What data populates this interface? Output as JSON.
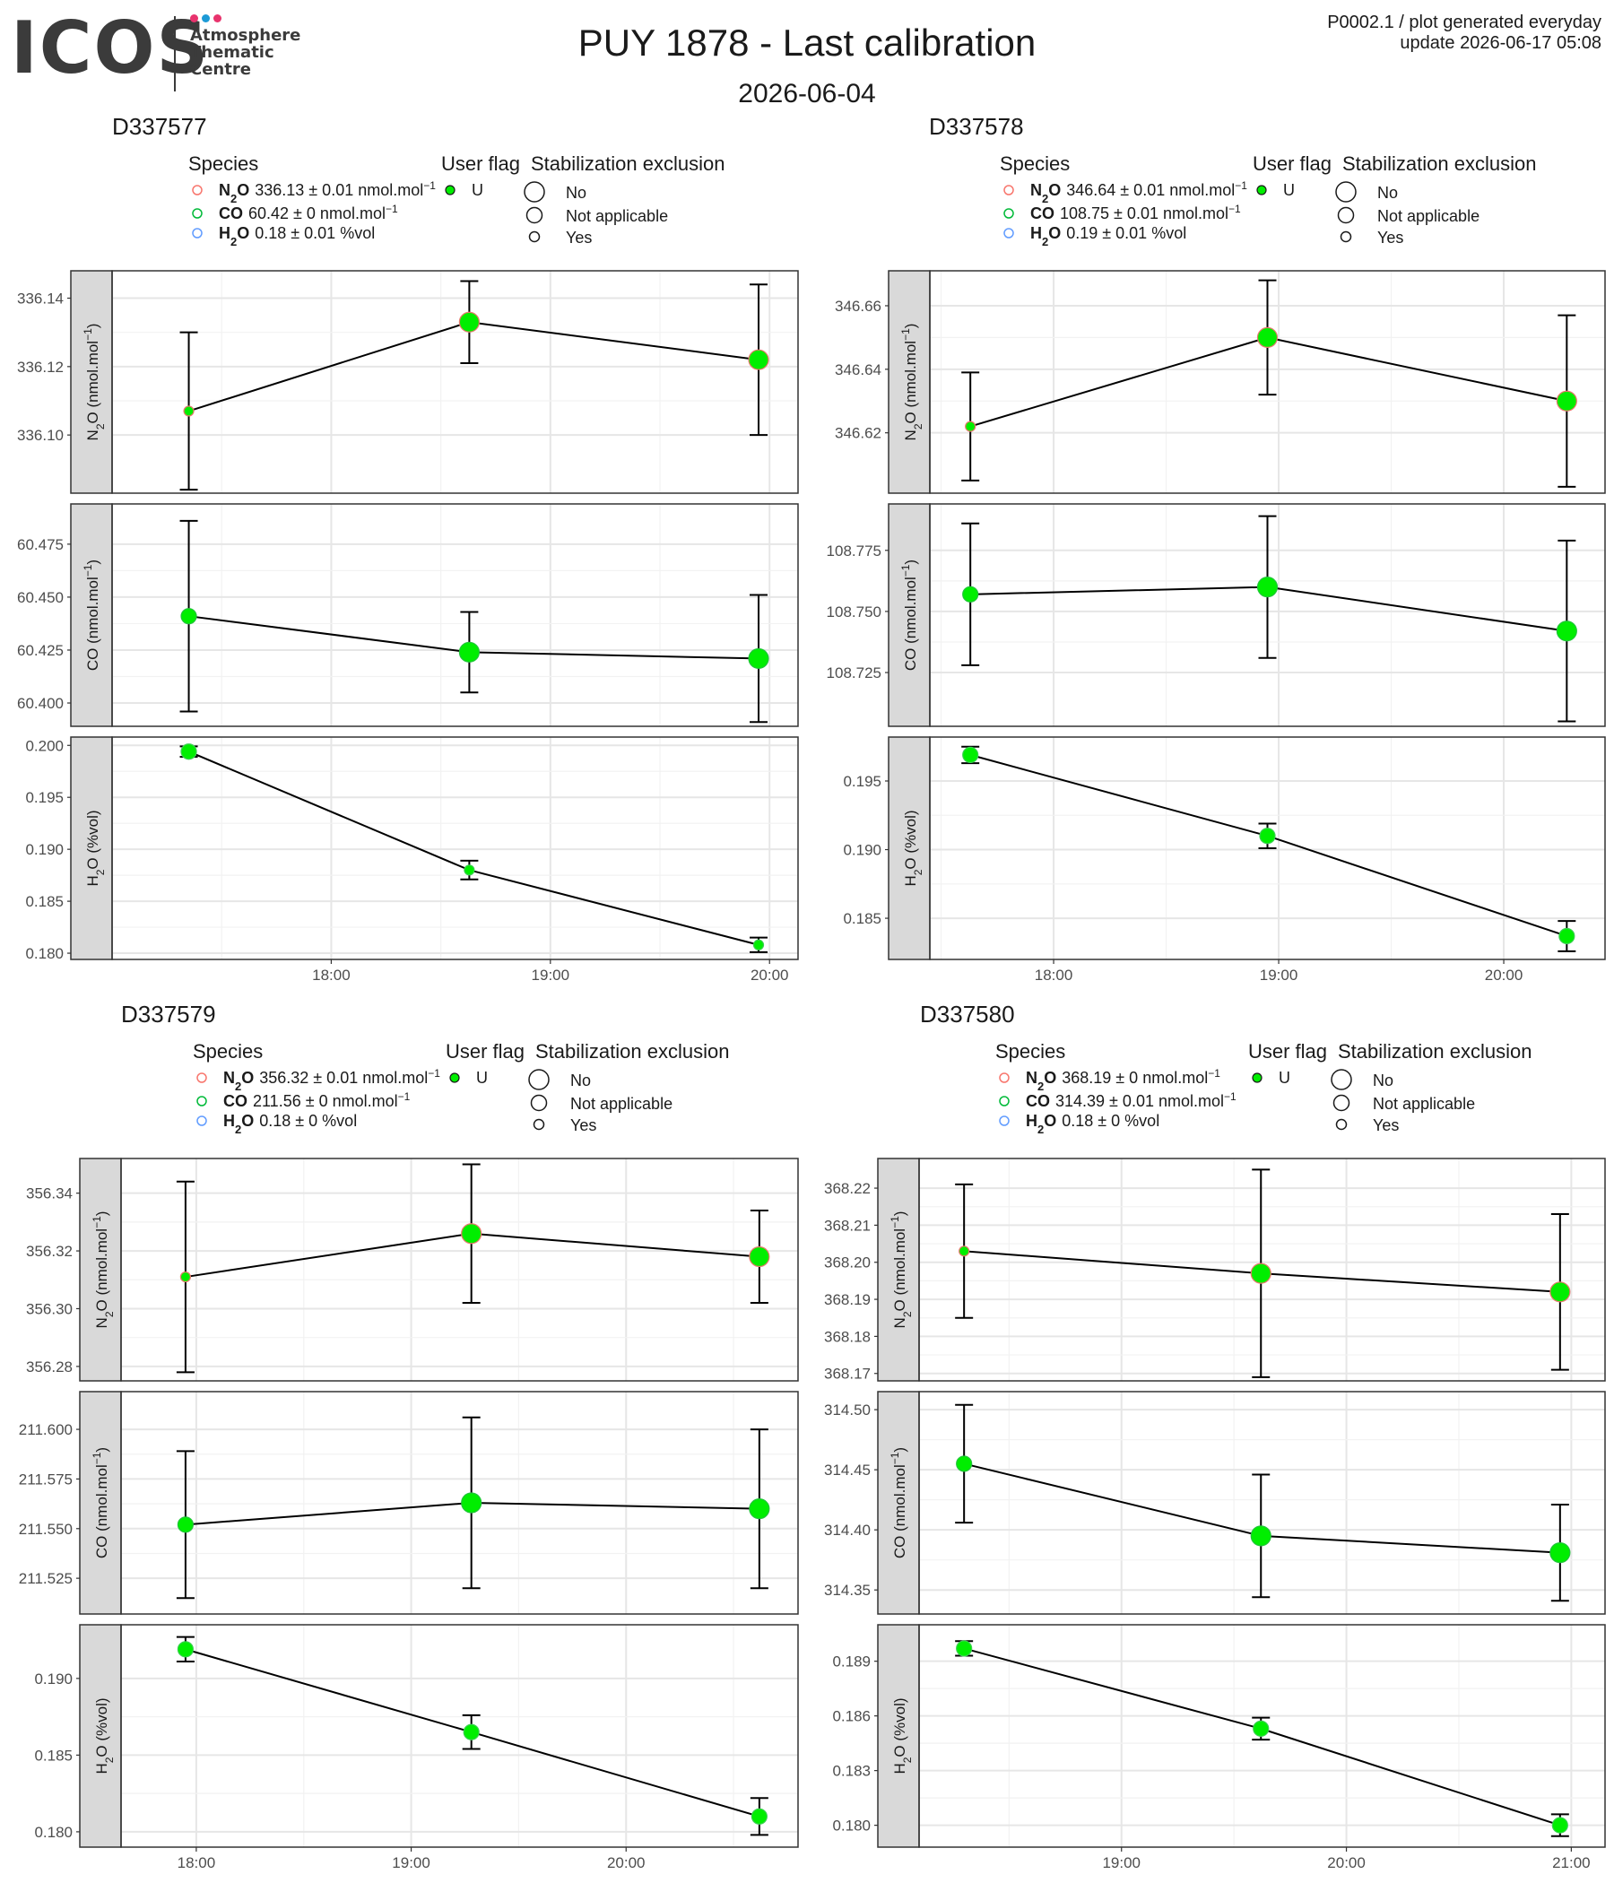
{
  "header": {
    "logo_text": "ICOS",
    "logo_subtitle": [
      "Atmosphere",
      "Thematic",
      "Centre"
    ],
    "logo_dot_colors": [
      "#e8336d",
      "#1c9ad6",
      "#e8336d"
    ],
    "title": "PUY 1878 - Last calibration",
    "subtitle": "2026-06-04",
    "plot_code_line1": "P0002.1 / plot generated everyday",
    "plot_code_line2": "update  2026-06-17 05:08"
  },
  "legend_labels": {
    "species": "Species",
    "user_flag": "User flag",
    "stabilization": "Stabilization exclusion",
    "user_flag_value": "U",
    "stab_values": [
      "No",
      "Not applicable",
      "Yes"
    ]
  },
  "colors": {
    "point_fill": "#00ee00",
    "point_outline_n2o": "#e8796e",
    "n2o_legend": "#f8766d",
    "co_legend": "#00ba38",
    "h2o_legend": "#619cff",
    "strip_bg": "#d9d9d9"
  },
  "chart_data": [
    {
      "type": "line",
      "title": "D337577",
      "legend": {
        "n2o": "336.13 ± 0.01 nmol.mol",
        "co": "60.42 ± 0 nmol.mol",
        "h2o": "0.18 ± 0.01 %vol"
      },
      "x_ticks": [
        "18:00",
        "19:00",
        "20:00"
      ],
      "x_tick_hours": [
        18,
        19,
        20
      ],
      "x_range": [
        17.0,
        20.13
      ],
      "x": [
        17.35,
        18.63,
        19.95
      ],
      "facets": [
        {
          "ylabel": "N2O (nmol.mol-1)",
          "ylim": [
            336.083,
            336.148
          ],
          "ticks": [
            336.1,
            336.12,
            336.14
          ],
          "tick_labels": [
            "336.10",
            "336.12",
            "336.14"
          ],
          "values": [
            336.107,
            336.133,
            336.122
          ],
          "err": [
            0.023,
            0.012,
            0.022
          ],
          "sizes": [
            "Yes",
            "No",
            "No"
          ]
        },
        {
          "ylabel": "CO (nmol.mol-1)",
          "ylim": [
            60.389,
            60.494
          ],
          "ticks": [
            60.4,
            60.425,
            60.45,
            60.475
          ],
          "tick_labels": [
            "60.400",
            "60.425",
            "60.450",
            "60.475"
          ],
          "values": [
            60.441,
            60.424,
            60.421
          ],
          "err": [
            0.045,
            0.019,
            0.03
          ],
          "sizes": [
            "Not applicable",
            "No",
            "No"
          ]
        },
        {
          "ylabel": "H2O (%vol)",
          "ylim": [
            0.1794,
            0.2008
          ],
          "ticks": [
            0.18,
            0.185,
            0.19,
            0.195,
            0.2
          ],
          "tick_labels": [
            "0.180",
            "0.185",
            "0.190",
            "0.195",
            "0.200"
          ],
          "values": [
            0.1994,
            0.188,
            0.1808
          ],
          "err": [
            0.0005,
            0.0009,
            0.0007
          ],
          "sizes": [
            "Not applicable",
            "Yes",
            "Yes"
          ]
        }
      ]
    },
    {
      "type": "line",
      "title": "D337578",
      "legend": {
        "n2o": "346.64 ± 0.01 nmol.mol",
        "co": "108.75 ± 0.01 nmol.mol",
        "h2o": "0.19 ± 0.01 %vol"
      },
      "x_ticks": [
        "18:00",
        "19:00",
        "20:00"
      ],
      "x_tick_hours": [
        18,
        19,
        20
      ],
      "x_range": [
        17.45,
        20.45
      ],
      "x": [
        17.63,
        18.95,
        20.28
      ],
      "facets": [
        {
          "ylabel": "N2O (nmol.mol-1)",
          "ylim": [
            346.601,
            346.671
          ],
          "ticks": [
            346.62,
            346.64,
            346.66
          ],
          "tick_labels": [
            "346.62",
            "346.64",
            "346.66"
          ],
          "values": [
            346.622,
            346.65,
            346.63
          ],
          "err": [
            0.017,
            0.018,
            0.027
          ],
          "sizes": [
            "Yes",
            "No",
            "No"
          ]
        },
        {
          "ylabel": "CO (nmol.mol-1)",
          "ylim": [
            108.703,
            108.794
          ],
          "ticks": [
            108.725,
            108.75,
            108.775
          ],
          "tick_labels": [
            "108.725",
            "108.750",
            "108.775"
          ],
          "values": [
            108.757,
            108.76,
            108.742
          ],
          "err": [
            0.029,
            0.029,
            0.037
          ],
          "sizes": [
            "Not applicable",
            "No",
            "No"
          ]
        },
        {
          "ylabel": "H2O (%vol)",
          "ylim": [
            0.182,
            0.1982
          ],
          "ticks": [
            0.185,
            0.19,
            0.195
          ],
          "tick_labels": [
            "0.185",
            "0.190",
            "0.195"
          ],
          "values": [
            0.1969,
            0.191,
            0.1837
          ],
          "err": [
            0.0006,
            0.0009,
            0.0011
          ],
          "sizes": [
            "Not applicable",
            "Not applicable",
            "Not applicable"
          ]
        }
      ]
    },
    {
      "type": "line",
      "title": "D337579",
      "legend": {
        "n2o": "356.32 ± 0.01 nmol.mol",
        "co": "211.56 ± 0 nmol.mol",
        "h2o": "0.18 ± 0 %vol"
      },
      "x_ticks": [
        "18:00",
        "19:00",
        "20:00"
      ],
      "x_tick_hours": [
        18,
        19,
        20
      ],
      "x_range": [
        17.65,
        20.8
      ],
      "x": [
        17.95,
        19.28,
        20.62
      ],
      "facets": [
        {
          "ylabel": "N2O (nmol.mol-1)",
          "ylim": [
            356.275,
            356.352
          ],
          "ticks": [
            356.28,
            356.3,
            356.32,
            356.34
          ],
          "tick_labels": [
            "356.28",
            "356.30",
            "356.32",
            "356.34"
          ],
          "values": [
            356.311,
            356.326,
            356.318
          ],
          "err": [
            0.033,
            0.024,
            0.016
          ],
          "sizes": [
            "Yes",
            "No",
            "No"
          ]
        },
        {
          "ylabel": "CO (nmol.mol-1)",
          "ylim": [
            211.507,
            211.619
          ],
          "ticks": [
            211.525,
            211.55,
            211.575,
            211.6
          ],
          "tick_labels": [
            "211.525",
            "211.550",
            "211.575",
            "211.600"
          ],
          "values": [
            211.552,
            211.563,
            211.56
          ],
          "err": [
            0.037,
            0.043,
            0.04
          ],
          "sizes": [
            "Not applicable",
            "No",
            "No"
          ]
        },
        {
          "ylabel": "H2O (%vol)",
          "ylim": [
            0.179,
            0.1935
          ],
          "ticks": [
            0.18,
            0.185,
            0.19
          ],
          "tick_labels": [
            "0.180",
            "0.185",
            "0.190"
          ],
          "values": [
            0.1919,
            0.1865,
            0.181
          ],
          "err": [
            0.0008,
            0.0011,
            0.0012
          ],
          "sizes": [
            "Not applicable",
            "Not applicable",
            "Not applicable"
          ]
        }
      ]
    },
    {
      "type": "line",
      "title": "D337580",
      "legend": {
        "n2o": "368.19 ± 0 nmol.mol",
        "co": "314.39 ± 0.01 nmol.mol",
        "h2o": "0.18 ± 0 %vol"
      },
      "x_ticks": [
        "19:00",
        "20:00",
        "21:00"
      ],
      "x_tick_hours": [
        19,
        20,
        21
      ],
      "x_range": [
        18.1,
        21.15
      ],
      "x": [
        18.3,
        19.62,
        20.95
      ],
      "facets": [
        {
          "ylabel": "N2O (nmol.mol-1)",
          "ylim": [
            368.168,
            368.228
          ],
          "ticks": [
            368.17,
            368.18,
            368.19,
            368.2,
            368.21,
            368.22
          ],
          "tick_labels": [
            "368.17",
            "368.18",
            "368.19",
            "368.20",
            "368.21",
            "368.22"
          ],
          "values": [
            368.203,
            368.197,
            368.192
          ],
          "err": [
            0.018,
            0.028,
            0.021
          ],
          "sizes": [
            "Yes",
            "No",
            "No"
          ]
        },
        {
          "ylabel": "CO (nmol.mol-1)",
          "ylim": [
            314.33,
            314.515
          ],
          "ticks": [
            314.35,
            314.4,
            314.45,
            314.5
          ],
          "tick_labels": [
            "314.35",
            "314.40",
            "314.45",
            "314.50"
          ],
          "values": [
            314.455,
            314.395,
            314.381
          ],
          "err": [
            0.049,
            0.051,
            0.04
          ],
          "sizes": [
            "Not applicable",
            "No",
            "No"
          ]
        },
        {
          "ylabel": "H2O (%vol)",
          "ylim": [
            0.1788,
            0.191
          ],
          "ticks": [
            0.18,
            0.183,
            0.186,
            0.189
          ],
          "tick_labels": [
            "0.180",
            "0.183",
            "0.186",
            "0.189"
          ],
          "values": [
            0.1897,
            0.1853,
            0.18
          ],
          "err": [
            0.0004,
            0.0006,
            0.0006
          ],
          "sizes": [
            "Not applicable",
            "Not applicable",
            "Not applicable"
          ]
        }
      ]
    }
  ]
}
